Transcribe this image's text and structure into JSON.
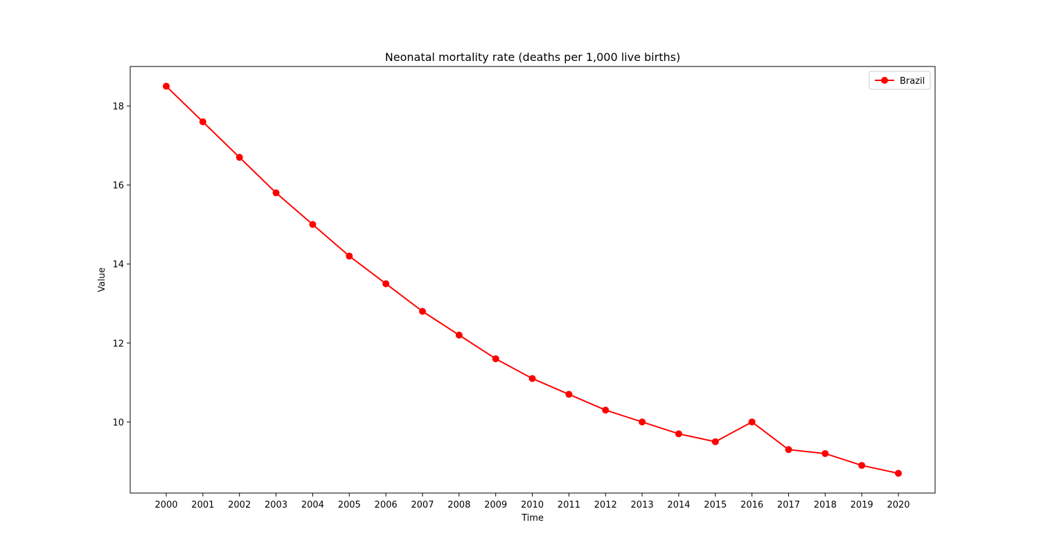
{
  "chart_data": {
    "type": "line",
    "title": "Neonatal mortality rate (deaths per 1,000 live births)",
    "xlabel": "Time",
    "ylabel": "Value",
    "x": [
      "2000",
      "2001",
      "2002",
      "2003",
      "2004",
      "2005",
      "2006",
      "2007",
      "2008",
      "2009",
      "2010",
      "2011",
      "2012",
      "2013",
      "2014",
      "2015",
      "2016",
      "2017",
      "2018",
      "2019",
      "2020"
    ],
    "y_ticks": [
      10,
      12,
      14,
      16,
      18
    ],
    "ylim": [
      8.2,
      19.0
    ],
    "grid": false,
    "legend_position": "top-right",
    "series": [
      {
        "name": "Brazil",
        "color": "#ff0000",
        "marker": "circle",
        "values": [
          18.5,
          17.6,
          16.7,
          15.8,
          15.0,
          14.2,
          13.5,
          12.8,
          12.2,
          11.6,
          11.1,
          10.7,
          10.3,
          10.0,
          9.7,
          9.5,
          10.0,
          9.3,
          9.2,
          8.9,
          8.7
        ]
      }
    ]
  }
}
